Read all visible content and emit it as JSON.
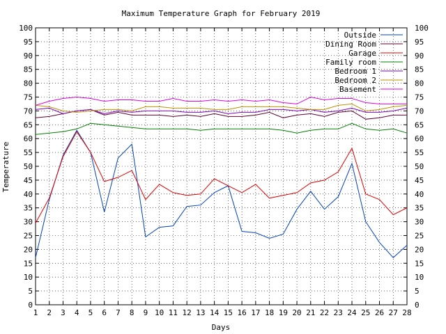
{
  "chart_data": {
    "type": "line",
    "title": "Maximum Temperature Graph for February 2019",
    "xlabel": "Days",
    "ylabel": "Temperature",
    "xlim": [
      1,
      28
    ],
    "ylim": [
      0,
      100
    ],
    "x_ticks": [
      1,
      2,
      3,
      4,
      5,
      6,
      7,
      8,
      9,
      10,
      11,
      12,
      13,
      14,
      15,
      16,
      17,
      18,
      19,
      20,
      21,
      22,
      23,
      24,
      25,
      26,
      27,
      28
    ],
    "y_ticks": [
      0,
      5,
      10,
      15,
      20,
      25,
      30,
      35,
      40,
      45,
      50,
      55,
      60,
      65,
      70,
      75,
      80,
      85,
      90,
      95,
      100
    ],
    "grid": true,
    "legend_position": "top-right",
    "x": [
      1,
      2,
      3,
      4,
      5,
      6,
      7,
      8,
      9,
      10,
      11,
      12,
      13,
      14,
      15,
      16,
      17,
      18,
      19,
      20,
      21,
      22,
      23,
      24,
      25,
      26,
      27,
      28
    ],
    "series": [
      {
        "name": "Outside",
        "color": "#0040c0",
        "values": [
          17,
          38,
          54,
          63,
          55,
          33.5,
          53,
          58,
          24.5,
          28,
          28.5,
          35.5,
          36,
          40.5,
          43,
          26.5,
          26,
          24,
          25.5,
          34.5,
          41,
          34.5,
          39,
          51,
          30,
          22.5,
          17,
          21.5
        ]
      },
      {
        "name": "Dining Room",
        "color": "#600030",
        "values": [
          67.5,
          68,
          69,
          70,
          70.5,
          68.5,
          69.5,
          68.5,
          68.5,
          68.5,
          68,
          68.5,
          68,
          69,
          68,
          68,
          68.5,
          69.5,
          67.5,
          68.5,
          69,
          68,
          69.5,
          70,
          67,
          67.5,
          68.5,
          68.5
        ]
      },
      {
        "name": "Garage",
        "color": "#e00000",
        "values": [
          29.5,
          38.5,
          53.5,
          62.5,
          55,
          44.5,
          46,
          48.5,
          38,
          43.5,
          40.5,
          39.5,
          40,
          45.5,
          43,
          40.5,
          43.5,
          38.5,
          39.5,
          40.5,
          44,
          45,
          48,
          56.5,
          40,
          38,
          32.5,
          35
        ]
      },
      {
        "name": "Family room",
        "color": "#008000",
        "values": [
          61.5,
          62,
          62.5,
          63.5,
          65.5,
          65,
          64.5,
          64,
          63.5,
          63.5,
          63.5,
          63.5,
          63,
          63.5,
          63.5,
          63.5,
          63.5,
          63.5,
          63,
          62,
          63,
          63.5,
          63.5,
          65.5,
          63.5,
          63,
          63.5,
          62
        ]
      },
      {
        "name": "Bedroom 1",
        "color": "#8000c0",
        "values": [
          70.5,
          71,
          69,
          70,
          70.5,
          69,
          70,
          69.5,
          70,
          70,
          70,
          69.5,
          69.5,
          70,
          69,
          69.5,
          69.5,
          70.5,
          70.5,
          70,
          70.5,
          69.5,
          70,
          71,
          69.5,
          69.5,
          70,
          71
        ]
      },
      {
        "name": "Bedroom 2",
        "color": "#c09000",
        "values": [
          72,
          71.5,
          70,
          69.5,
          70,
          70.5,
          70.5,
          70,
          71.5,
          71.5,
          71,
          71,
          71,
          70.5,
          70.5,
          71.5,
          71.5,
          71.5,
          71.5,
          71,
          70.5,
          70.5,
          72,
          72.5,
          70,
          70.5,
          71.5,
          72
        ]
      },
      {
        "name": "Basement",
        "color": "#e000e0",
        "values": [
          72,
          73.5,
          74.5,
          75,
          74.5,
          73.5,
          74,
          74,
          73.5,
          73.5,
          74.5,
          73.5,
          73.5,
          74,
          73.5,
          74,
          73.5,
          74,
          73,
          72.5,
          75,
          74,
          74.5,
          74.5,
          73,
          72.5,
          72.5,
          72.5
        ]
      }
    ]
  }
}
